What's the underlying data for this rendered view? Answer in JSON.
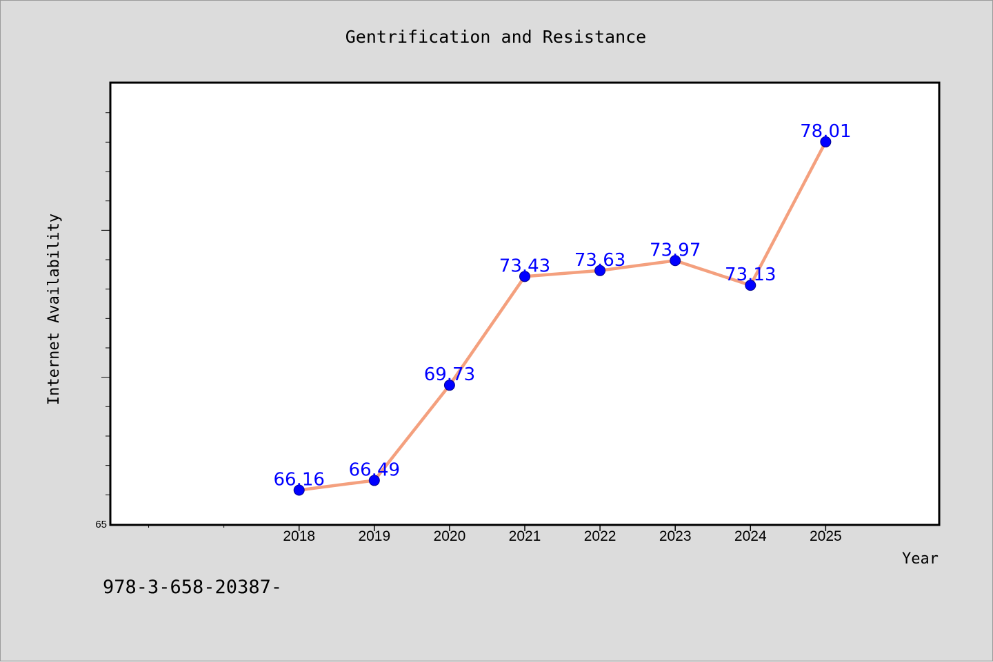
{
  "chart_data": {
    "type": "line",
    "title": "Gentrification and Resistance",
    "xlabel": "Year",
    "ylabel": "Internet Availability",
    "x": [
      2018,
      2019,
      2020,
      2021,
      2022,
      2023,
      2024,
      2025
    ],
    "series": [
      {
        "values": [
          66.16,
          66.49,
          69.73,
          73.43,
          73.63,
          73.97,
          73.13,
          78.01
        ],
        "data_labels": [
          "66.16",
          "66.49",
          "69.73",
          "73.43",
          "73.63",
          "73.97",
          "73.13",
          "78.01"
        ]
      }
    ],
    "x_tick_labels": [
      "2018",
      "2019",
      "2020",
      "2021",
      "2022",
      "2023",
      "2024",
      "2025"
    ],
    "y_tick_labels": [
      "65"
    ],
    "xlim": [
      2015.5,
      2026.5
    ],
    "ylim": [
      65,
      80
    ],
    "grid": false,
    "colors": {
      "line": "#f4a07e",
      "marker": "#0000ff",
      "data_label": "#0000ff",
      "plot_background": "#ffffff",
      "page_background": "#dcdcdc"
    }
  },
  "footnote": "978-3-658-20387-"
}
